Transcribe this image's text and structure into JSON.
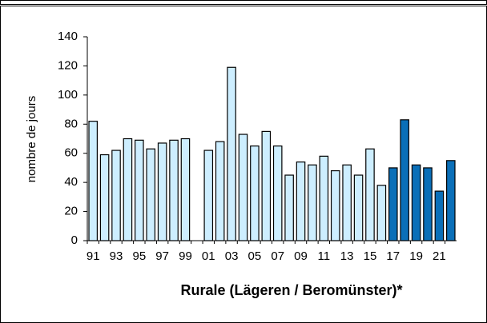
{
  "chart_data": {
    "type": "bar",
    "x_label": "Rurale (Lägeren / Beromünster)*",
    "y_label": "nombre de jours",
    "categories": [
      "91",
      null,
      "93",
      null,
      "95",
      null,
      "97",
      null,
      "99",
      null,
      "01",
      null,
      "03",
      null,
      "05",
      null,
      "07",
      null,
      "09",
      null,
      "11",
      null,
      "13",
      null,
      "15",
      null,
      "17",
      null,
      "19",
      null,
      "21",
      null
    ],
    "values": [
      82,
      59,
      62,
      70,
      69,
      63,
      67,
      69,
      70,
      null,
      62,
      68,
      119,
      73,
      65,
      75,
      65,
      45,
      54,
      52,
      58,
      48,
      52,
      45,
      63,
      38,
      50,
      83,
      52,
      50,
      34,
      55
    ],
    "colors": [
      "#cdeeff",
      "#cdeeff",
      "#cdeeff",
      "#cdeeff",
      "#cdeeff",
      "#cdeeff",
      "#cdeeff",
      "#cdeeff",
      "#cdeeff",
      "#cdeeff",
      "#cdeeff",
      "#cdeeff",
      "#cdeeff",
      "#cdeeff",
      "#cdeeff",
      "#cdeeff",
      "#cdeeff",
      "#cdeeff",
      "#cdeeff",
      "#cdeeff",
      "#cdeeff",
      "#cdeeff",
      "#cdeeff",
      "#cdeeff",
      "#cdeeff",
      "#cdeeff",
      "#0a6fb8",
      "#0a6fb8",
      "#0a6fb8",
      "#0a6fb8",
      "#0a6fb8",
      "#0a6fb8"
    ],
    "ylim": [
      0,
      140
    ],
    "yticks": [
      0,
      20,
      40,
      60,
      80,
      100,
      120,
      140
    ],
    "grid": false
  }
}
